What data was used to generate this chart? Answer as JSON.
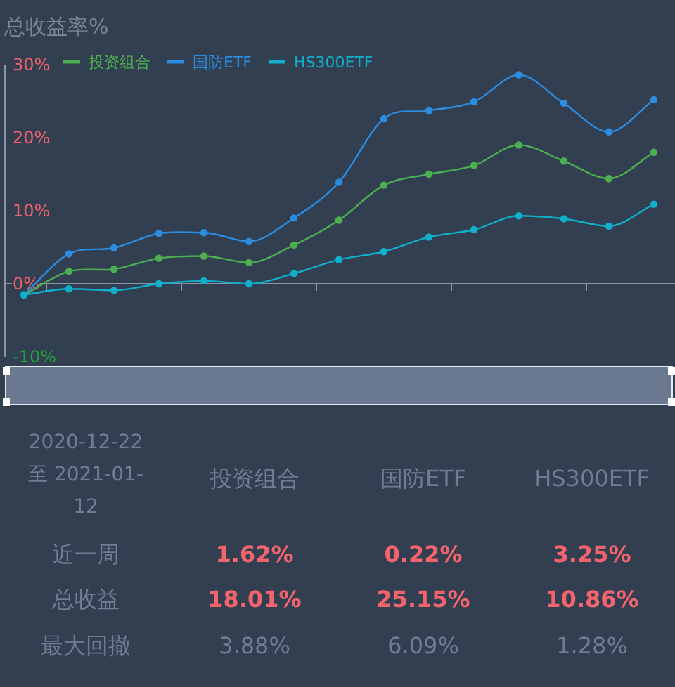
{
  "chart_data": [
    {
      "type": "line",
      "title": "总收益率%",
      "categories": [
        null,
        null,
        null,
        null,
        null,
        null,
        null,
        null,
        null,
        null,
        null,
        null,
        null,
        null,
        null
      ],
      "series": [
        {
          "name": "投资组合",
          "color": "#4caf50",
          "values": [
            -1.5,
            1.7,
            2.0,
            3.5,
            3.8,
            2.9,
            5.3,
            8.7,
            13.5,
            15.0,
            16.2,
            19.0,
            16.8,
            14.4,
            18.0
          ]
        },
        {
          "name": "国防ETF",
          "color": "#2b8ce0",
          "values": [
            -1.5,
            4.1,
            4.9,
            6.9,
            7.0,
            5.8,
            9.0,
            13.9,
            22.6,
            23.7,
            24.9,
            28.6,
            24.7,
            20.8,
            25.2
          ]
        },
        {
          "name": "HS300ETF",
          "color": "#0fb0cc",
          "values": [
            -1.5,
            -0.7,
            -0.9,
            0,
            0.4,
            0,
            1.4,
            3.3,
            4.4,
            6.4,
            7.4,
            9.3,
            8.9,
            7.9,
            10.9
          ]
        }
      ],
      "ylim": [
        -10,
        30
      ],
      "yticks": [
        {
          "value": -10,
          "label": "-10%"
        },
        {
          "value": 0,
          "label": "0%"
        },
        {
          "value": 10,
          "label": "10%"
        },
        {
          "value": 20,
          "label": "20%"
        },
        {
          "value": 30,
          "label": "30%"
        }
      ],
      "legend": "top left",
      "marker": "circle",
      "line_style": "solid",
      "tick_labels": "y"
    },
    {
      "type": "other",
      "title": "2020-12-22 至 2021-01-12",
      "categories": [
        "投资组合",
        "国防ETF",
        "HS300ETF"
      ],
      "y_categories": [
        "近一周",
        "总收益",
        "最大回撤"
      ],
      "cell_labels": [
        [
          "1.62%",
          "0.22%",
          "3.25%"
        ],
        [
          "18.01%",
          "25.15%",
          "10.86%"
        ],
        [
          "3.88%",
          "6.09%",
          "1.28%"
        ]
      ]
    }
  ]
}
